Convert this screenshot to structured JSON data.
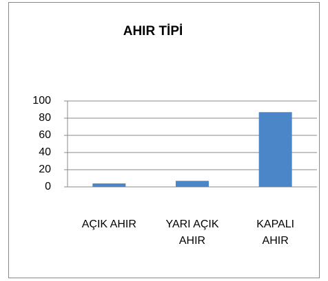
{
  "chart_data": {
    "type": "bar",
    "title": "AHIR TİPİ",
    "categories": [
      "AÇIK AHIR",
      "YARI AÇIK AHIR",
      "KAPALI AHIR"
    ],
    "values": [
      4,
      7,
      87
    ],
    "color": "#4a86c8",
    "ylim": [
      0,
      100
    ],
    "yticks": [
      0,
      20,
      40,
      60,
      80,
      100
    ],
    "grid": true
  }
}
